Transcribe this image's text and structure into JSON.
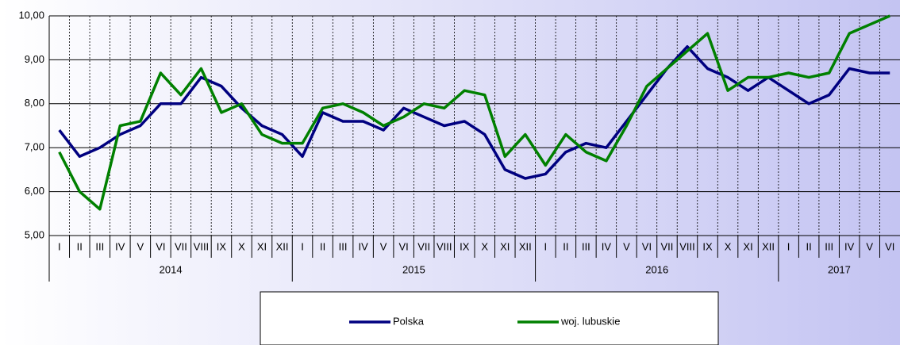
{
  "chart_data": {
    "type": "line",
    "categories": [
      "I",
      "II",
      "III",
      "IV",
      "V",
      "VI",
      "VII",
      "VIII",
      "IX",
      "X",
      "XI",
      "XII",
      "I",
      "II",
      "III",
      "IV",
      "V",
      "VI",
      "VII",
      "VIII",
      "IX",
      "X",
      "XI",
      "XII",
      "I",
      "II",
      "III",
      "IV",
      "V",
      "VI",
      "VII",
      "VIII",
      "IX",
      "X",
      "XI",
      "XII",
      "I",
      "II",
      "III",
      "IV",
      "V",
      "VI"
    ],
    "year_labels": [
      "2014",
      "2015",
      "2016",
      "2017"
    ],
    "series": [
      {
        "name": "Polska",
        "color": "#000080",
        "values": [
          7.4,
          6.8,
          7.0,
          7.3,
          7.5,
          8.0,
          8.0,
          8.6,
          8.4,
          7.9,
          7.5,
          7.3,
          6.8,
          7.8,
          7.6,
          7.6,
          7.4,
          7.9,
          7.7,
          7.5,
          7.6,
          7.3,
          6.5,
          6.3,
          6.4,
          6.9,
          7.1,
          7.0,
          7.6,
          8.2,
          8.8,
          9.3,
          8.8,
          8.6,
          8.3,
          8.6,
          8.3,
          8.0,
          8.2,
          8.8,
          8.7,
          8.7
        ]
      },
      {
        "name": "woj. lubuskie",
        "color": "#008000",
        "values": [
          6.9,
          6.0,
          5.6,
          7.5,
          7.6,
          8.7,
          8.2,
          8.8,
          7.8,
          8.0,
          7.3,
          7.1,
          7.1,
          7.9,
          8.0,
          7.8,
          7.5,
          7.7,
          8.0,
          7.9,
          8.3,
          8.2,
          6.8,
          7.3,
          6.6,
          7.3,
          6.9,
          6.7,
          7.5,
          8.4,
          8.8,
          9.2,
          9.6,
          8.3,
          8.6,
          8.6,
          8.7,
          8.6,
          8.7,
          9.6,
          9.8,
          10.0
        ]
      }
    ],
    "ylim": [
      5,
      10
    ],
    "yticks": [
      {
        "value": 5,
        "label": "5,00"
      },
      {
        "value": 6,
        "label": "6,00"
      },
      {
        "value": 7,
        "label": "7,00"
      },
      {
        "value": 8,
        "label": "8,00"
      },
      {
        "value": 9,
        "label": "9,00"
      },
      {
        "value": 10,
        "label": "10,00"
      }
    ],
    "grid": true
  }
}
